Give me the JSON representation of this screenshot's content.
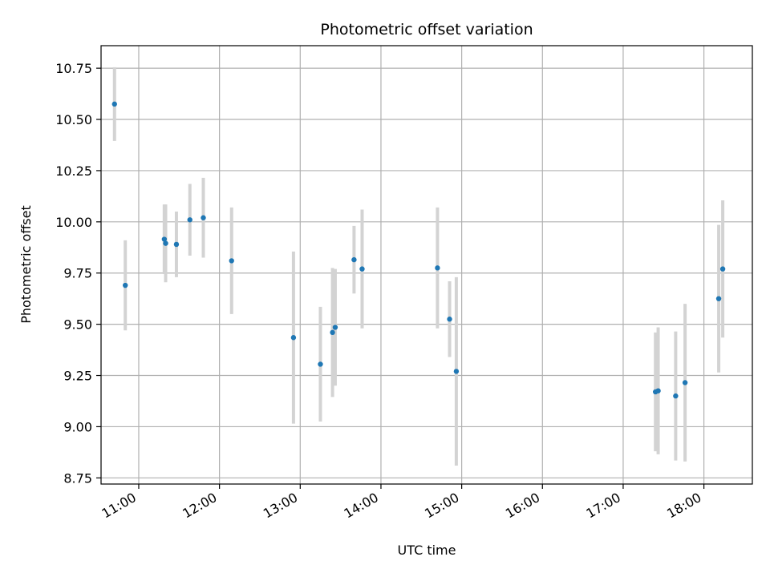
{
  "chart_data": {
    "type": "scatter",
    "title": "Photometric offset variation",
    "xlabel": "UTC time",
    "ylabel": "Photometric offset",
    "x_ticks": [
      "11:00",
      "12:00",
      "13:00",
      "14:00",
      "15:00",
      "16:00",
      "17:00",
      "18:00"
    ],
    "y_ticks": [
      "8.75",
      "9.00",
      "9.25",
      "9.50",
      "9.75",
      "10.00",
      "10.25",
      "10.50",
      "10.75"
    ],
    "xlim": [
      "10:32",
      "18:36"
    ],
    "ylim": [
      8.72,
      10.86
    ],
    "grid": true,
    "colors": {
      "point": "#1f77b4",
      "errorbar": "#d3d3d3",
      "grid": "#b0b0b0"
    },
    "points": [
      {
        "x": "10:42",
        "y": 10.575,
        "err": 0.18
      },
      {
        "x": "10:50",
        "y": 9.69,
        "err": 0.22
      },
      {
        "x": "11:19",
        "y": 9.915,
        "err": 0.17
      },
      {
        "x": "11:20",
        "y": 9.895,
        "err": 0.19
      },
      {
        "x": "11:28",
        "y": 9.89,
        "err": 0.16
      },
      {
        "x": "11:38",
        "y": 10.01,
        "err": 0.175
      },
      {
        "x": "11:48",
        "y": 10.02,
        "err": 0.195
      },
      {
        "x": "12:09",
        "y": 9.81,
        "err": 0.26
      },
      {
        "x": "12:55",
        "y": 9.435,
        "err": 0.42
      },
      {
        "x": "13:15",
        "y": 9.305,
        "err": 0.28
      },
      {
        "x": "13:24",
        "y": 9.46,
        "err": 0.315
      },
      {
        "x": "13:26",
        "y": 9.485,
        "err": 0.285
      },
      {
        "x": "13:40",
        "y": 9.815,
        "err": 0.165
      },
      {
        "x": "13:46",
        "y": 9.77,
        "err": 0.29
      },
      {
        "x": "14:42",
        "y": 9.775,
        "err": 0.295
      },
      {
        "x": "14:51",
        "y": 9.525,
        "err": 0.185
      },
      {
        "x": "14:56",
        "y": 9.27,
        "err": 0.46
      },
      {
        "x": "17:24",
        "y": 9.17,
        "err": 0.29
      },
      {
        "x": "17:26",
        "y": 9.175,
        "err": 0.31
      },
      {
        "x": "17:39",
        "y": 9.15,
        "err": 0.315
      },
      {
        "x": "17:46",
        "y": 9.215,
        "err": 0.385
      },
      {
        "x": "18:11",
        "y": 9.625,
        "err": 0.36
      },
      {
        "x": "18:14",
        "y": 9.77,
        "err": 0.335
      }
    ]
  }
}
